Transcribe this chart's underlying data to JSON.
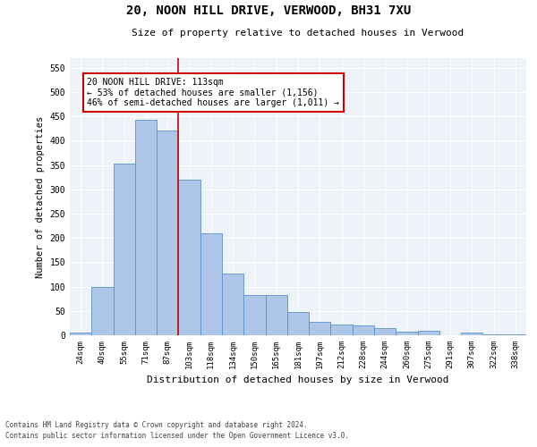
{
  "title_line1": "20, NOON HILL DRIVE, VERWOOD, BH31 7XU",
  "title_line2": "Size of property relative to detached houses in Verwood",
  "xlabel": "Distribution of detached houses by size in Verwood",
  "ylabel": "Number of detached properties",
  "categories": [
    "24sqm",
    "40sqm",
    "55sqm",
    "71sqm",
    "87sqm",
    "103sqm",
    "118sqm",
    "134sqm",
    "150sqm",
    "165sqm",
    "181sqm",
    "197sqm",
    "212sqm",
    "228sqm",
    "244sqm",
    "260sqm",
    "275sqm",
    "291sqm",
    "307sqm",
    "322sqm",
    "338sqm"
  ],
  "values": [
    5,
    100,
    353,
    443,
    421,
    320,
    210,
    127,
    83,
    83,
    48,
    27,
    22,
    20,
    14,
    7,
    10,
    0,
    5,
    2,
    1
  ],
  "bar_color": "#aec6e8",
  "bar_edge_color": "#5b8fc9",
  "property_line_bin": 5,
  "property_label": "20 NOON HILL DRIVE: 113sqm",
  "annotation_line2": "← 53% of detached houses are smaller (1,156)",
  "annotation_line3": "46% of semi-detached houses are larger (1,011) →",
  "annotation_box_color": "#ffffff",
  "annotation_box_edge_color": "#cc0000",
  "vline_color": "#cc0000",
  "ylim": [
    0,
    570
  ],
  "yticks": [
    0,
    50,
    100,
    150,
    200,
    250,
    300,
    350,
    400,
    450,
    500,
    550
  ],
  "footer_line1": "Contains HM Land Registry data © Crown copyright and database right 2024.",
  "footer_line2": "Contains public sector information licensed under the Open Government Licence v3.0.",
  "bg_color": "#eef2f9"
}
